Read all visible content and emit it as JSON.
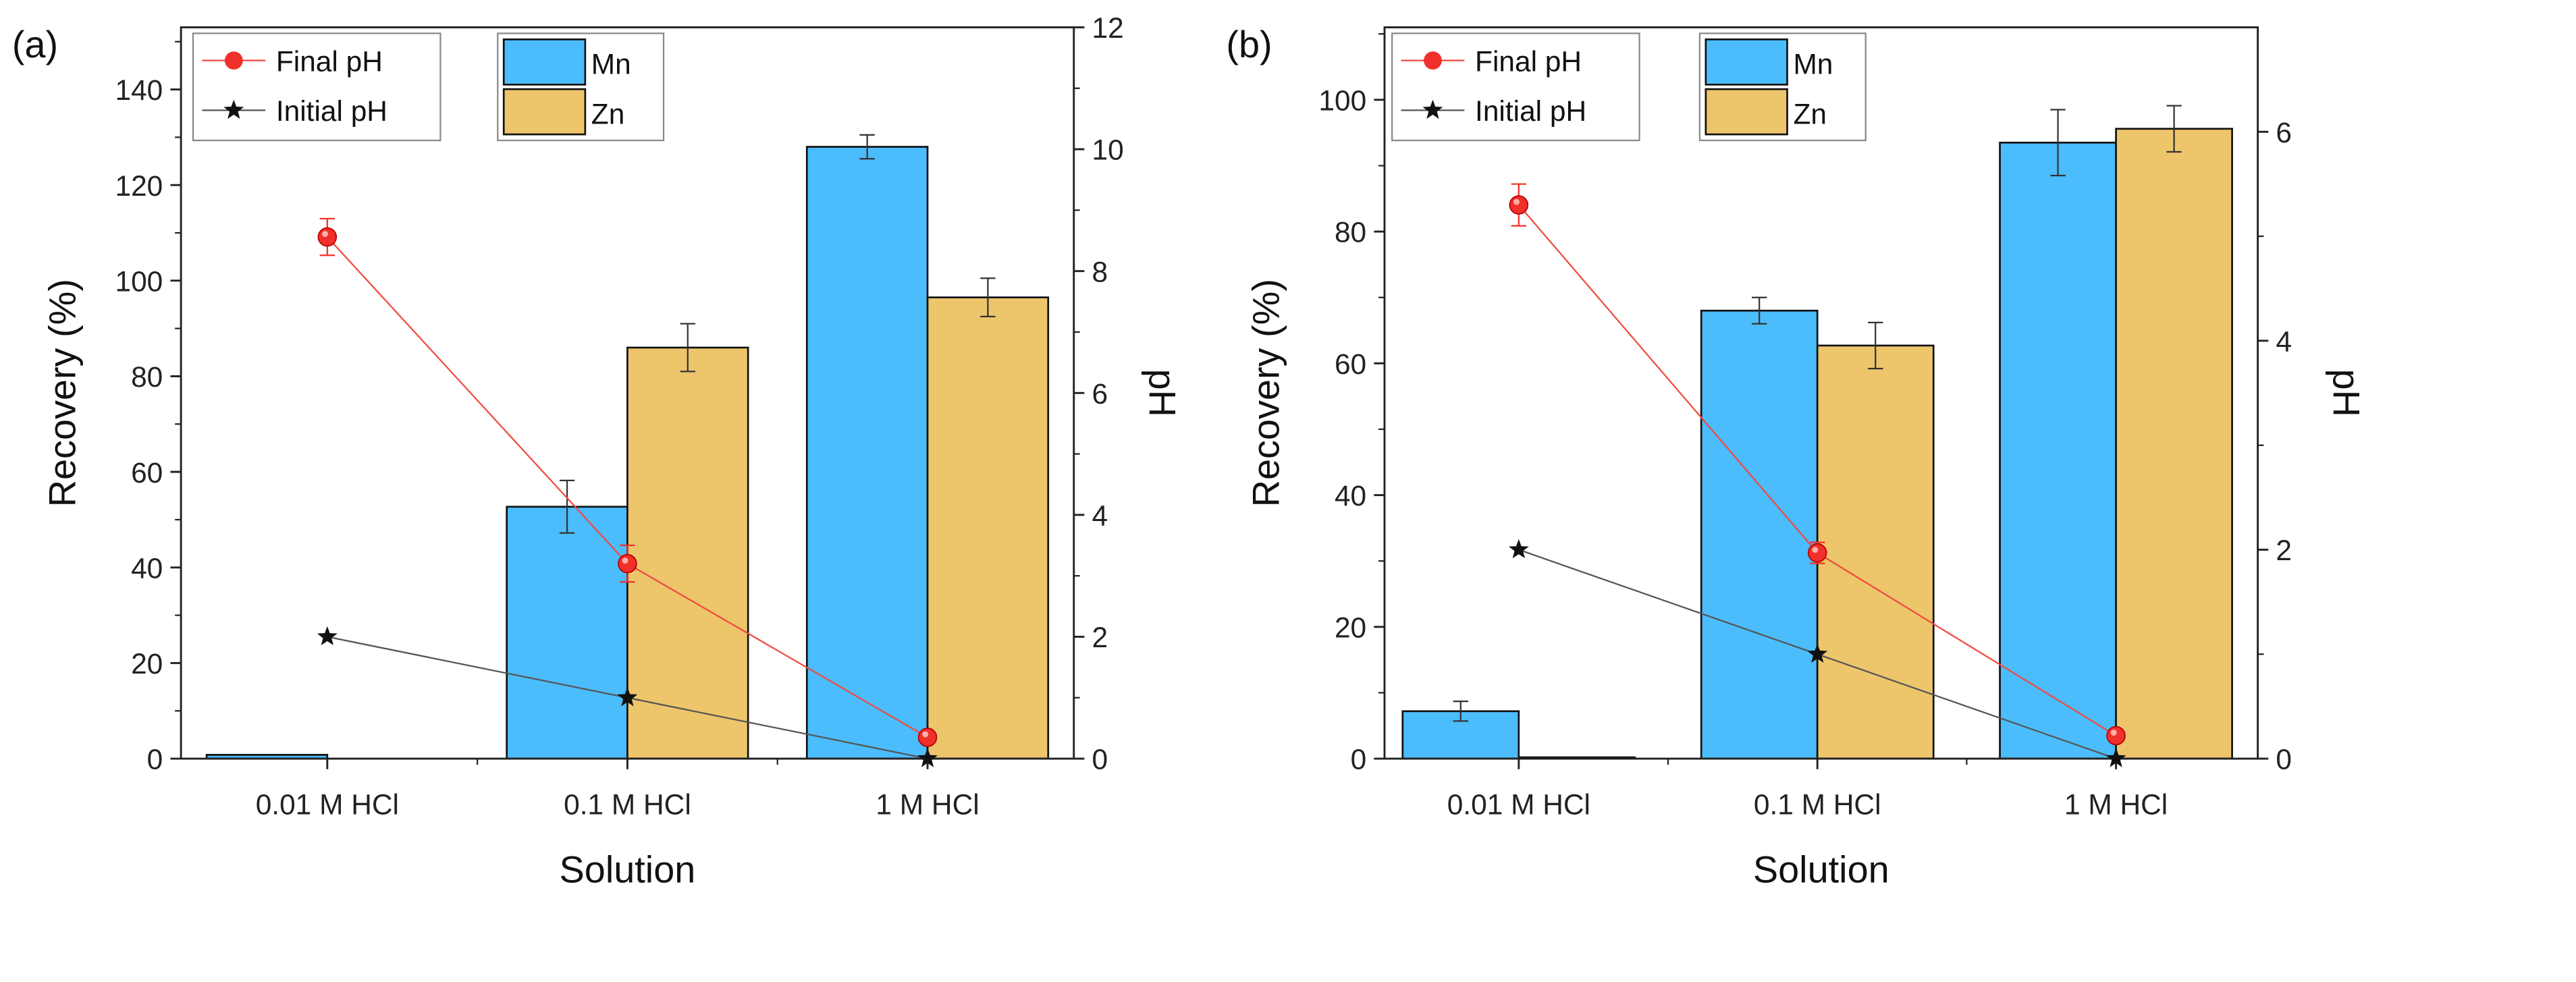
{
  "colors": {
    "mn": "#4BBCFC",
    "zn": "#EDC56B",
    "final": "#F0302A",
    "initial": "#111111",
    "finalLine": "#F04A40",
    "initialLine": "#555555"
  },
  "legend": {
    "final": "Final pH",
    "initial": "Initial pH",
    "mn": "Mn",
    "zn": "Zn"
  },
  "chart_data": [
    {
      "panel": "(a)",
      "type": "bar",
      "xlabel": "Solution",
      "ylabel": "Recovery (%)",
      "y2label": "pH",
      "categories": [
        "0.01 M HCl",
        "0.1 M HCl",
        "1 M HCl"
      ],
      "ylim": [
        0,
        153
      ],
      "yticks": [
        0,
        20,
        40,
        60,
        80,
        100,
        120,
        140
      ],
      "y2lim": [
        0,
        12
      ],
      "y2ticks": [
        0,
        2,
        4,
        6,
        8,
        10,
        12
      ],
      "series": [
        {
          "name": "Mn",
          "values": [
            0.8,
            52.7,
            128
          ],
          "errors": [
            0,
            5.5,
            2.5
          ]
        },
        {
          "name": "Zn",
          "values": [
            0,
            86,
            96.5
          ],
          "errors": [
            0,
            5,
            4
          ]
        }
      ],
      "lines": [
        {
          "name": "Final pH",
          "values": [
            8.56,
            3.2,
            0.35
          ],
          "errors": [
            0.3,
            0.3,
            0
          ]
        },
        {
          "name": "Initial pH",
          "values": [
            2,
            1,
            0
          ]
        }
      ]
    },
    {
      "panel": "(b)",
      "type": "bar",
      "xlabel": "Solution",
      "ylabel": "Recovery (%)",
      "y2label": "pH",
      "categories": [
        "0.01 M HCl",
        "0.1 M HCl",
        "1 M HCl"
      ],
      "ylim": [
        0,
        111
      ],
      "yticks": [
        0,
        20,
        40,
        60,
        80,
        100
      ],
      "y2lim": [
        0,
        7
      ],
      "y2ticks": [
        0,
        2,
        4,
        6
      ],
      "series": [
        {
          "name": "Mn",
          "values": [
            7.2,
            68,
            93.5
          ],
          "errors": [
            1.5,
            2,
            5
          ]
        },
        {
          "name": "Zn",
          "values": [
            0.2,
            62.7,
            95.6
          ],
          "errors": [
            0,
            3.5,
            3.5
          ]
        }
      ],
      "lines": [
        {
          "name": "Final pH",
          "values": [
            5.3,
            1.97,
            0.22
          ],
          "errors": [
            0.2,
            0.1,
            0
          ]
        },
        {
          "name": "Initial pH",
          "values": [
            2,
            1,
            0
          ]
        }
      ]
    }
  ]
}
